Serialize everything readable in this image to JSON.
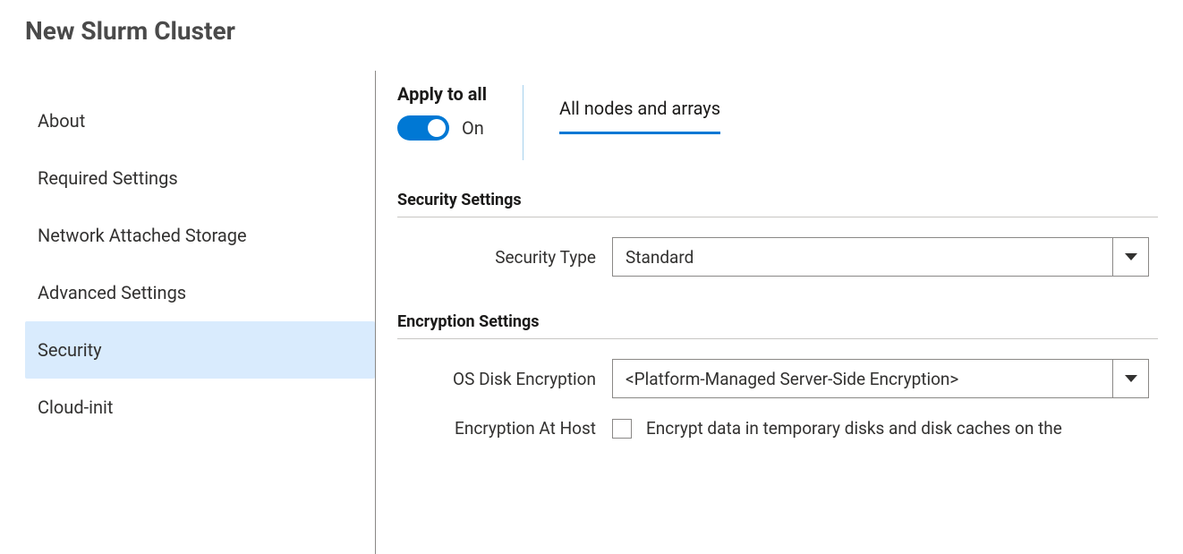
{
  "page": {
    "title": "New Slurm Cluster"
  },
  "sidebar": {
    "items": [
      {
        "label": "About",
        "selected": false
      },
      {
        "label": "Required Settings",
        "selected": false
      },
      {
        "label": "Network Attached Storage",
        "selected": false
      },
      {
        "label": "Advanced Settings",
        "selected": false
      },
      {
        "label": "Security",
        "selected": true
      },
      {
        "label": "Cloud-init",
        "selected": false
      }
    ]
  },
  "applyToAll": {
    "label": "Apply to all",
    "state": "On",
    "on": true
  },
  "tabs": {
    "active": "All nodes and arrays"
  },
  "sections": {
    "security": {
      "title": "Security Settings",
      "fields": {
        "securityType": {
          "label": "Security Type",
          "value": "Standard"
        }
      }
    },
    "encryption": {
      "title": "Encryption Settings",
      "fields": {
        "osDiskEncryption": {
          "label": "OS Disk Encryption",
          "value": "<Platform-Managed Server-Side Encryption>"
        },
        "encryptionAtHost": {
          "label": "Encryption At Host",
          "checked": false,
          "description": "Encrypt data in temporary disks and disk caches on the"
        }
      }
    }
  },
  "colors": {
    "accent": "#0078d4",
    "selectedBg": "#d9ebfd",
    "border": "#8a8886",
    "text": "#323130"
  }
}
